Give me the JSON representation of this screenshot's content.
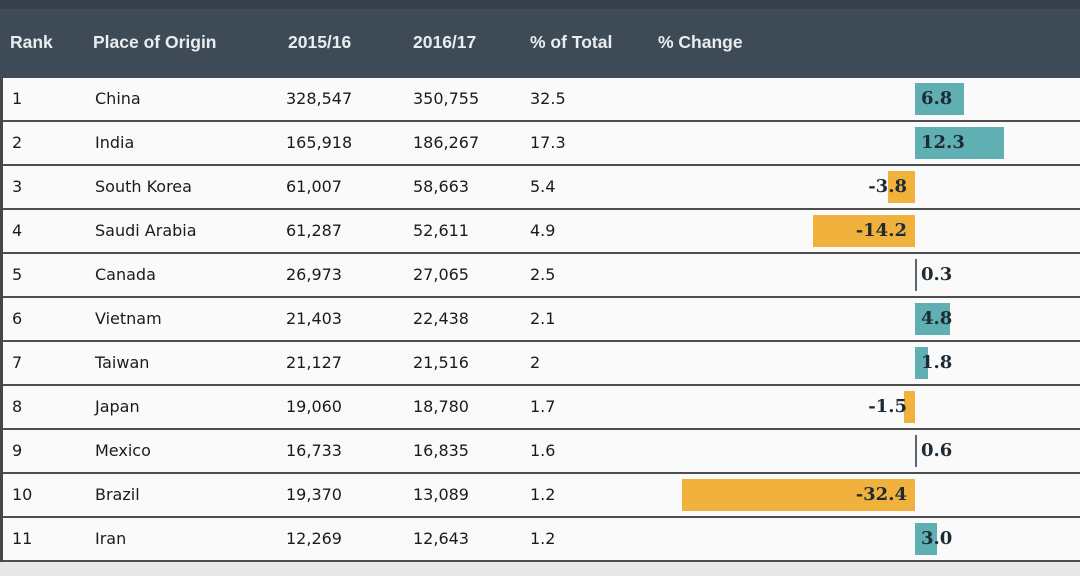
{
  "header": {
    "columns": [
      "Rank",
      "Place of Origin",
      "2015/16",
      "2016/17",
      "% of Total",
      "% Change"
    ]
  },
  "chart_data": {
    "type": "table",
    "columns": [
      "Rank",
      "Place of Origin",
      "2015/16",
      "2016/17",
      "% of Total",
      "% Change"
    ],
    "bar_column": "% Change",
    "rows": [
      {
        "rank": "1",
        "place": "China",
        "y2015_16": "328,547",
        "y2016_17": "350,755",
        "pct_of_total": "32.5",
        "pct_change": 6.8,
        "pct_change_label": "6.8"
      },
      {
        "rank": "2",
        "place": "India",
        "y2015_16": "165,918",
        "y2016_17": "186,267",
        "pct_of_total": "17.3",
        "pct_change": 12.3,
        "pct_change_label": "12.3"
      },
      {
        "rank": "3",
        "place": "South Korea",
        "y2015_16": "61,007",
        "y2016_17": "58,663",
        "pct_of_total": "5.4",
        "pct_change": -3.8,
        "pct_change_label": "-3.8"
      },
      {
        "rank": "4",
        "place": "Saudi Arabia",
        "y2015_16": "61,287",
        "y2016_17": "52,611",
        "pct_of_total": "4.9",
        "pct_change": -14.2,
        "pct_change_label": "-14.2"
      },
      {
        "rank": "5",
        "place": "Canada",
        "y2015_16": "26,973",
        "y2016_17": "27,065",
        "pct_of_total": "2.5",
        "pct_change": 0.3,
        "pct_change_label": "0.3"
      },
      {
        "rank": "6",
        "place": "Vietnam",
        "y2015_16": "21,403",
        "y2016_17": "22,438",
        "pct_of_total": "2.1",
        "pct_change": 4.8,
        "pct_change_label": "4.8"
      },
      {
        "rank": "7",
        "place": "Taiwan",
        "y2015_16": "21,127",
        "y2016_17": "21,516",
        "pct_of_total": "2",
        "pct_change": 1.8,
        "pct_change_label": "1.8"
      },
      {
        "rank": "8",
        "place": "Japan",
        "y2015_16": "19,060",
        "y2016_17": "18,780",
        "pct_of_total": "1.7",
        "pct_change": -1.5,
        "pct_change_label": "-1.5"
      },
      {
        "rank": "9",
        "place": "Mexico",
        "y2015_16": "16,733",
        "y2016_17": "16,835",
        "pct_of_total": "1.6",
        "pct_change": 0.6,
        "pct_change_label": "0.6"
      },
      {
        "rank": "10",
        "place": "Brazil",
        "y2015_16": "19,370",
        "y2016_17": "13,089",
        "pct_of_total": "1.2",
        "pct_change": -32.4,
        "pct_change_label": "-32.4"
      },
      {
        "rank": "11",
        "place": "Iran",
        "y2015_16": "12,269",
        "y2016_17": "12,643",
        "pct_of_total": "1.2",
        "pct_change": 3.0,
        "pct_change_label": "3.0"
      }
    ]
  },
  "colors": {
    "header_bg": "#3e4a56",
    "header_top_strip": "#36414b",
    "header_text": "#e9edf0",
    "row_bg": "#fbfafa",
    "separator": "#4e4e4e",
    "page_bg": "#e9e8e6",
    "bar_positive": "#5fafb3",
    "bar_negative": "#f0b23c",
    "bar_near_zero": "#5c656d",
    "bar_label": "#1e2b33"
  }
}
